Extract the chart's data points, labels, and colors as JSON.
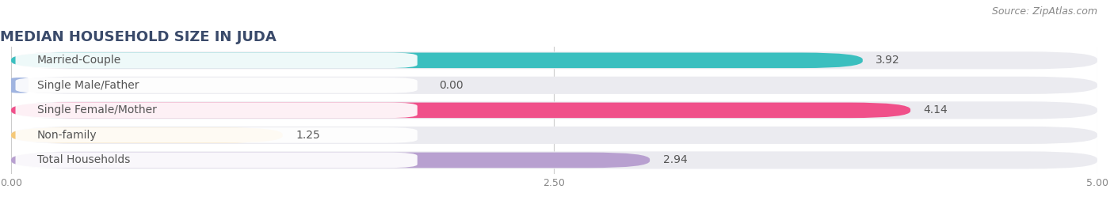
{
  "title": "MEDIAN HOUSEHOLD SIZE IN JUDA",
  "source": "Source: ZipAtlas.com",
  "categories": [
    "Married-Couple",
    "Single Male/Father",
    "Single Female/Mother",
    "Non-family",
    "Total Households"
  ],
  "values": [
    3.92,
    0.0,
    4.14,
    1.25,
    2.94
  ],
  "bar_colors": [
    "#3bbfbf",
    "#a0b4e0",
    "#f0508a",
    "#f5c878",
    "#b8a0d0"
  ],
  "xlim_max": 5.0,
  "xticks": [
    0.0,
    2.5,
    5.0
  ],
  "xticklabels": [
    "0.00",
    "2.50",
    "5.00"
  ],
  "title_fontsize": 13,
  "source_fontsize": 9,
  "label_fontsize": 10,
  "value_fontsize": 10,
  "background_color": "#ffffff",
  "bar_row_bg": "#ebebf0",
  "title_color": "#3a4a6a",
  "label_text_color": "#555555",
  "value_text_color": "#555555"
}
